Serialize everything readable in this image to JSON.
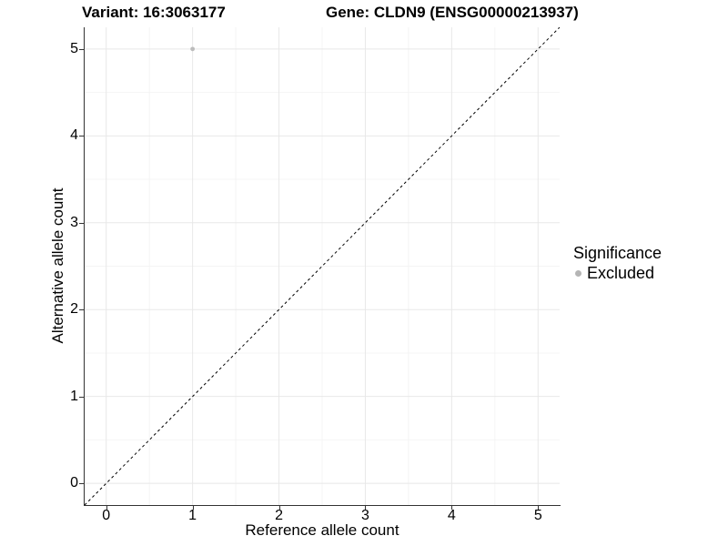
{
  "chart_data": {
    "type": "scatter",
    "titles": {
      "variant": "Variant: 16:3063177",
      "gene": "Gene: CLDN9 (ENSG00000213937)"
    },
    "xlabel": "Reference allele count",
    "ylabel": "Alternative allele count",
    "xlim": [
      -0.25,
      5.25
    ],
    "ylim": [
      -0.25,
      5.25
    ],
    "xticks": [
      0,
      1,
      2,
      3,
      4,
      5
    ],
    "yticks": [
      0,
      1,
      2,
      3,
      4,
      5
    ],
    "grid": {
      "major": true,
      "minor": true
    },
    "points": [
      {
        "x": 1,
        "y": 5,
        "significance": "Excluded"
      }
    ],
    "identity_line": {
      "equation": "y = x",
      "style": "dashed"
    },
    "legend": {
      "title": "Significance",
      "position": "right",
      "items": [
        {
          "label": "Excluded",
          "color": "#b5b5b5"
        }
      ]
    }
  },
  "colors": {
    "background": "#ffffff",
    "point": "#bcbcbc",
    "legend_swatch": "#b5b5b5",
    "grid_major": "#e8e8e8",
    "grid_minor": "#f4f4f4",
    "axis_line": "#333333",
    "identity_line": "#000000",
    "text": "#000000"
  }
}
